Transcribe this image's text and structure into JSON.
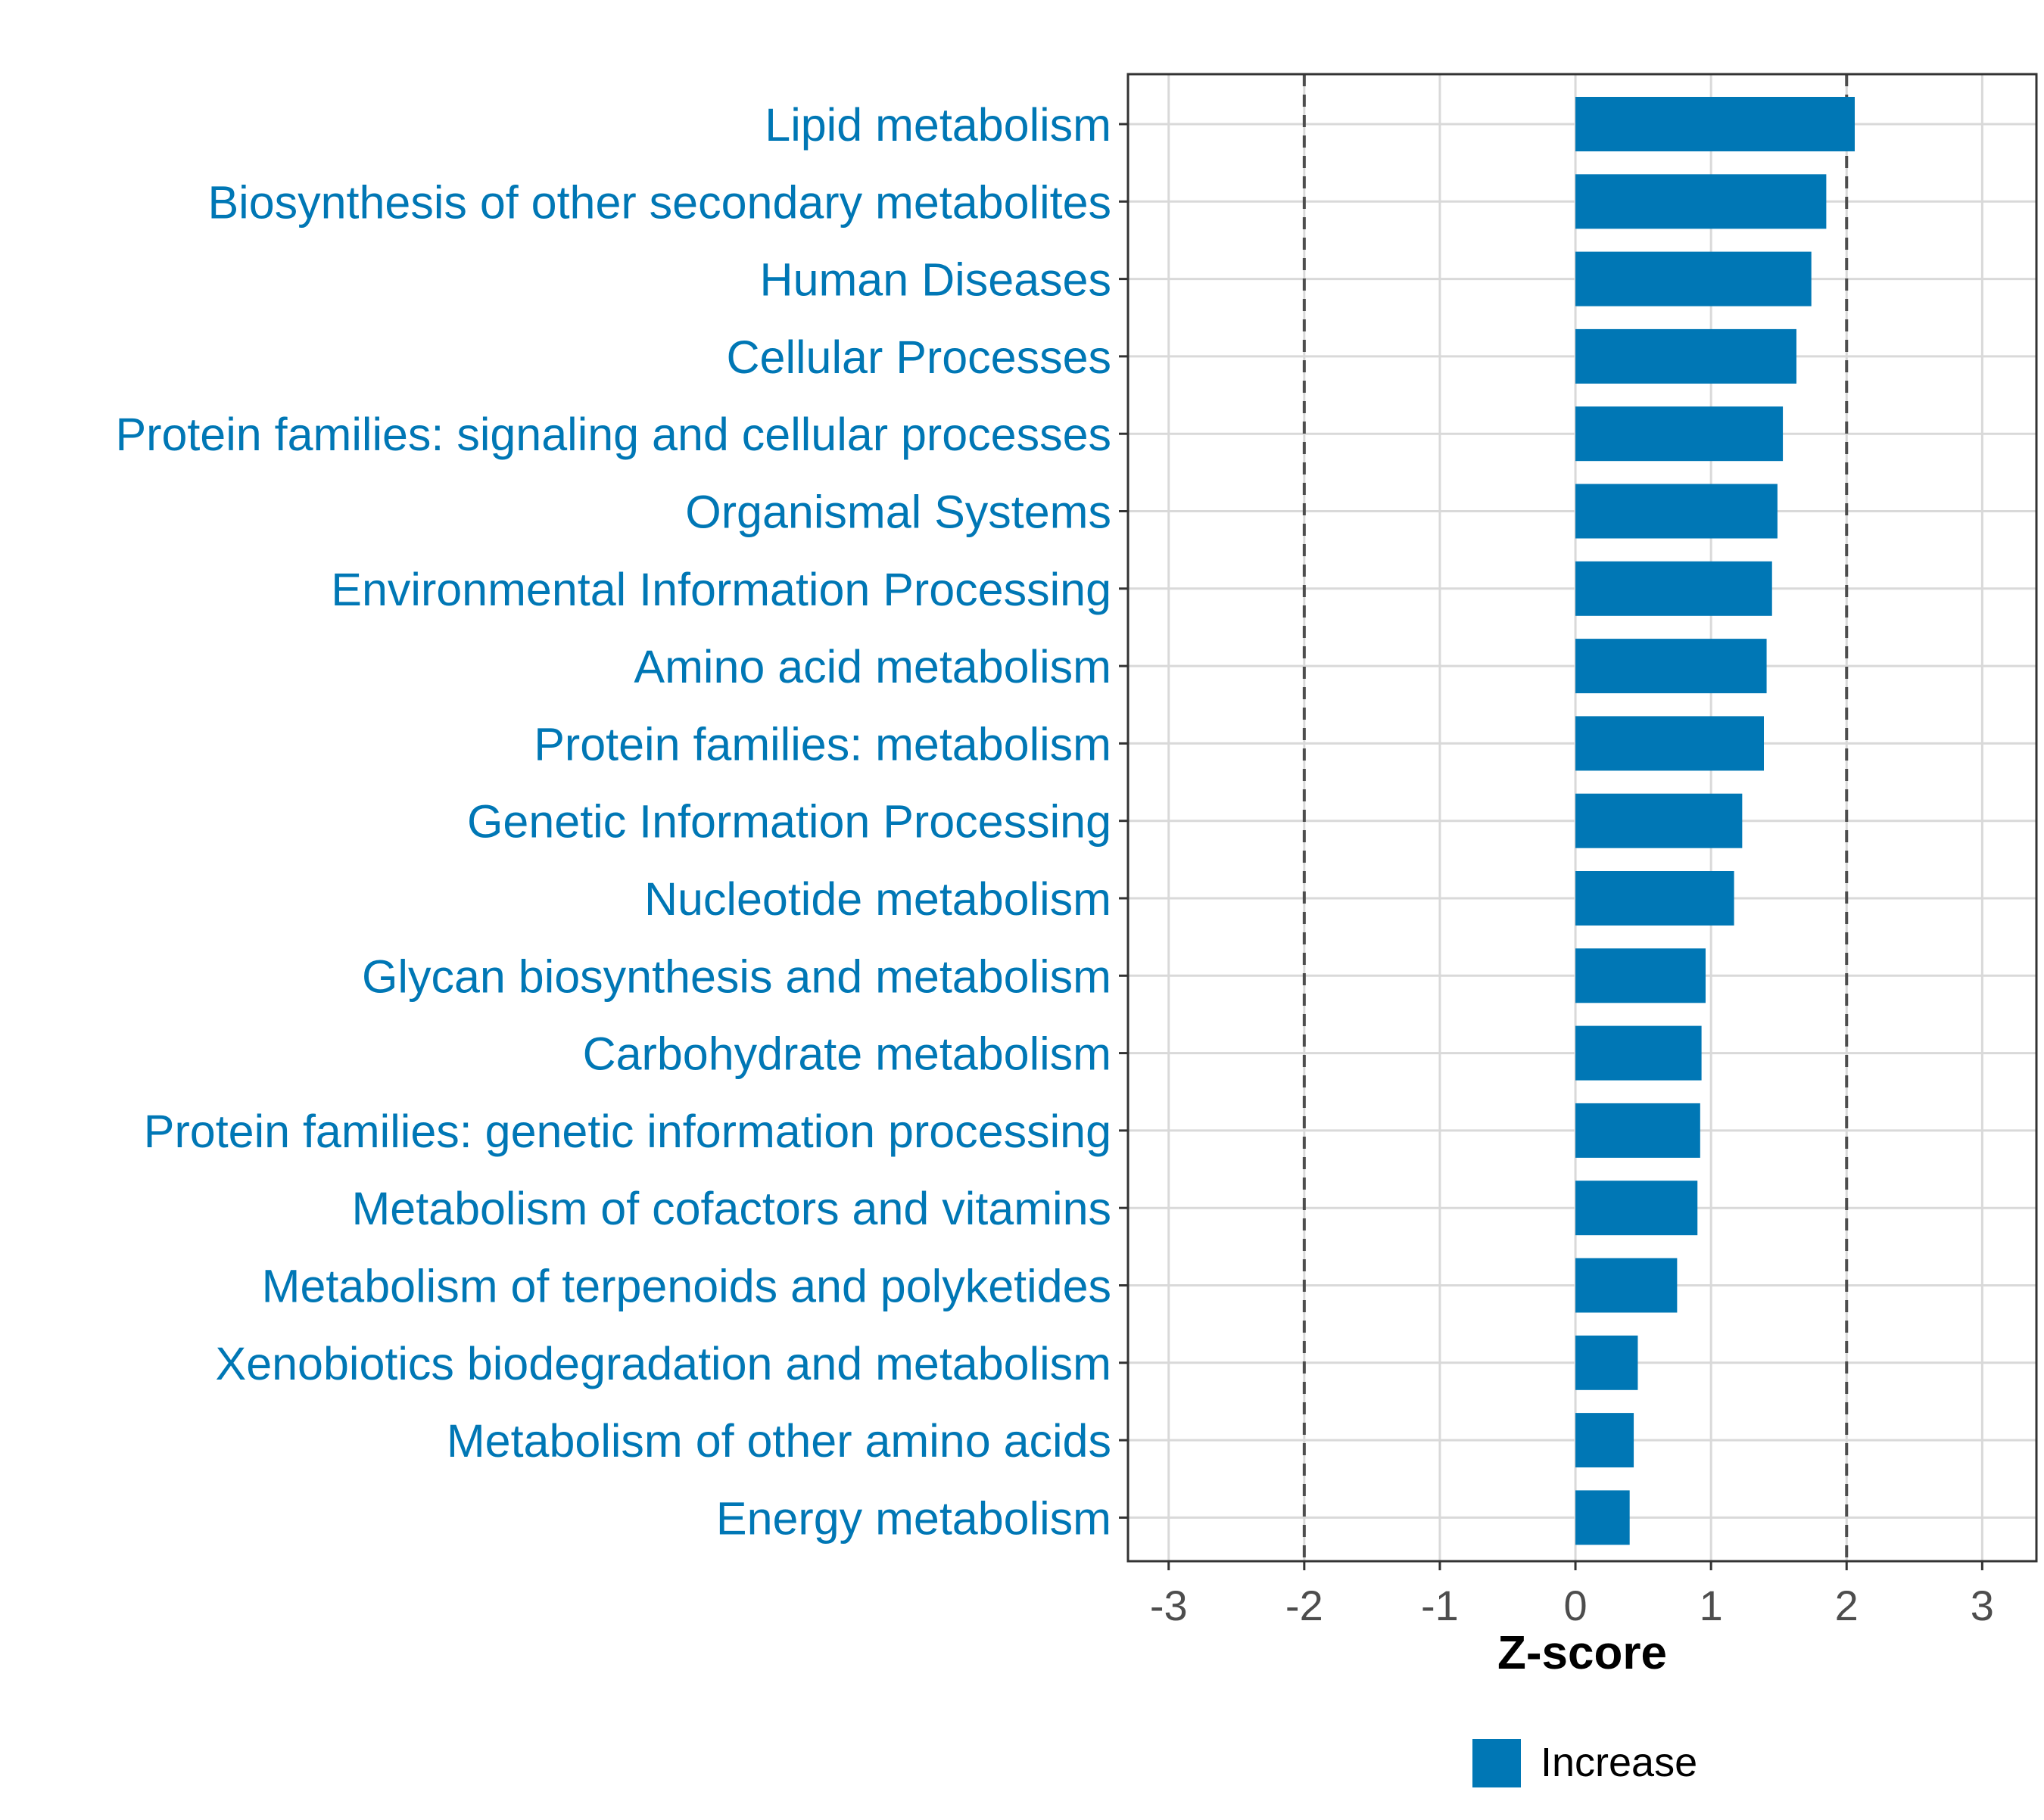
{
  "chart_data": {
    "type": "bar",
    "orientation": "horizontal",
    "title": "",
    "xlabel": "Z-score",
    "ylabel": "",
    "xlim": [
      -3.3,
      3.4
    ],
    "xticks": [
      -3,
      -2,
      -1,
      0,
      1,
      2,
      3
    ],
    "xtick_labels": [
      "-3",
      "-2",
      "-1",
      "0",
      "1",
      "2",
      "3"
    ],
    "reference_lines": [
      -2,
      2
    ],
    "grid": true,
    "categories": [
      "Lipid metabolism",
      "Biosynthesis of other secondary metabolites",
      "Human Diseases",
      "Cellular Processes",
      "Protein families: signaling and cellular processes",
      "Organismal Systems",
      "Environmental Information Processing",
      "Amino acid metabolism",
      "Protein families: metabolism",
      "Genetic Information Processing",
      "Nucleotide metabolism",
      "Glycan biosynthesis and metabolism",
      "Carbohydrate metabolism",
      "Protein families: genetic information processing",
      "Metabolism of cofactors and vitamins",
      "Metabolism of terpenoids and polyketides",
      "Xenobiotics biodegradation and metabolism",
      "Metabolism of other amino acids",
      "Energy metabolism"
    ],
    "series": [
      {
        "name": "Increase",
        "color": "#0077B5",
        "values": [
          2.06,
          1.85,
          1.74,
          1.63,
          1.53,
          1.49,
          1.45,
          1.41,
          1.39,
          1.23,
          1.17,
          0.96,
          0.93,
          0.92,
          0.9,
          0.75,
          0.46,
          0.43,
          0.4
        ]
      }
    ],
    "legend": {
      "position": "bottom",
      "entries": [
        "Increase"
      ]
    }
  },
  "colors": {
    "bar": "#0077B5",
    "category_label": "#0077B5",
    "tick_label": "#4D4D4D",
    "grid": "#D9D9D9",
    "reference_line": "#4D4D4D",
    "panel_border": "#333333"
  }
}
